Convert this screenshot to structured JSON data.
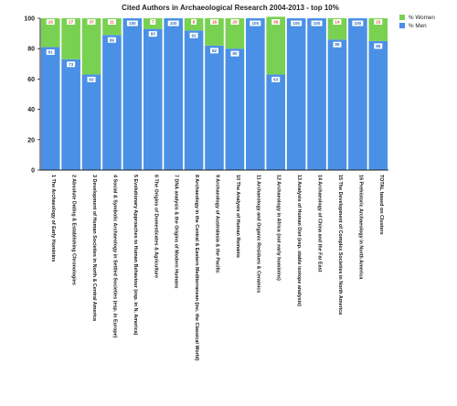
{
  "chart_data": {
    "type": "bar",
    "stacked": true,
    "percent": true,
    "title": "Cited Authors in Archaeological Research 2004-2013 - top 10%",
    "xlabel": "",
    "ylabel": "",
    "ylim": [
      0,
      100
    ],
    "yticks": [
      0,
      20,
      40,
      60,
      80,
      100
    ],
    "grid": false,
    "legend_position": "top-right",
    "categories": [
      "1 The Archaeology of Early Hominins",
      "2 Absolute Dating & Establishing Chronologies",
      "3 Development of Human Societies in North & Central America",
      "4 Social & Symbolic Archaeology in Settled Societies (esp. in Europe)",
      "5 Evolutionary Approaches to Human Behaviour (esp. in N. America)",
      "6 The Origins of Domesticates & Agriculture",
      "7 DNA analysis & the Origins of Modern Humans",
      "8 Archaeology in the Central & Eastern Mediterranean (inc. the Classical World)",
      "9 Archaeology of Australasia & the Pacific",
      "10 The Analysis of Human Remains",
      "11 Archaeology and Organic Residues & Ceramics",
      "12 Archaeology in Africa (not early hominins)",
      "13 Analysis of Human Diet (esp. stable isotope analysis)",
      "14 Archaeology of China and the Far East",
      "15 The Development of Complex Societies in North America",
      "16 Prehistoric Archaeology in North America",
      "TOTAL based on Clusters"
    ],
    "series": [
      {
        "name": "% Men",
        "color": "#4a90e6",
        "values": [
          81,
          73,
          63,
          89,
          100,
          93,
          100,
          92,
          82,
          80,
          100,
          63,
          100,
          100,
          86,
          100,
          85
        ],
        "labels": [
          "81",
          "73",
          "63",
          "89",
          "100",
          "93",
          "100",
          "92",
          "82",
          "80",
          "100",
          "63",
          "100",
          "100",
          "86",
          "100",
          "85"
        ]
      },
      {
        "name": "% Women",
        "color": "#79d151",
        "values": [
          19,
          27,
          37,
          11,
          0,
          7,
          0,
          8,
          18,
          20,
          0,
          38,
          0,
          0,
          14,
          0,
          15
        ],
        "labels": [
          "19",
          "27",
          "37",
          "11",
          "",
          "7",
          "",
          "8",
          "18",
          "20",
          "",
          "38",
          "",
          "",
          "14",
          "",
          "15"
        ]
      }
    ]
  }
}
